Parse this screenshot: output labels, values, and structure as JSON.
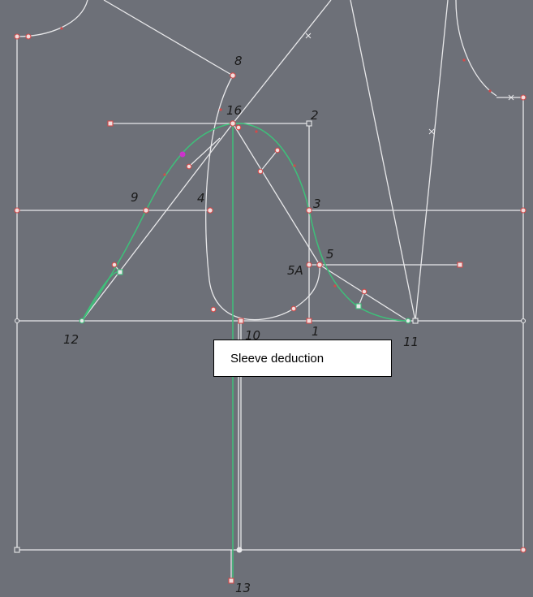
{
  "colors": {
    "background": "#6d7078",
    "line": "#e8e8ea",
    "curve": "#3ec07a",
    "marker": "#d24a4a",
    "marker_fill": "#f2dede",
    "accent_point": "#cc33cc",
    "label": "#1a1a1a"
  },
  "point_labels": {
    "p8": "8",
    "p16": "16",
    "p2": "2",
    "p9": "9",
    "p4": "4",
    "p3": "3",
    "p5": "5",
    "p5a": "5A",
    "p12": "12",
    "p10": "10",
    "p1": "1",
    "p11": "11",
    "p13": "13"
  },
  "callout": {
    "text": "Sleeve deduction"
  }
}
